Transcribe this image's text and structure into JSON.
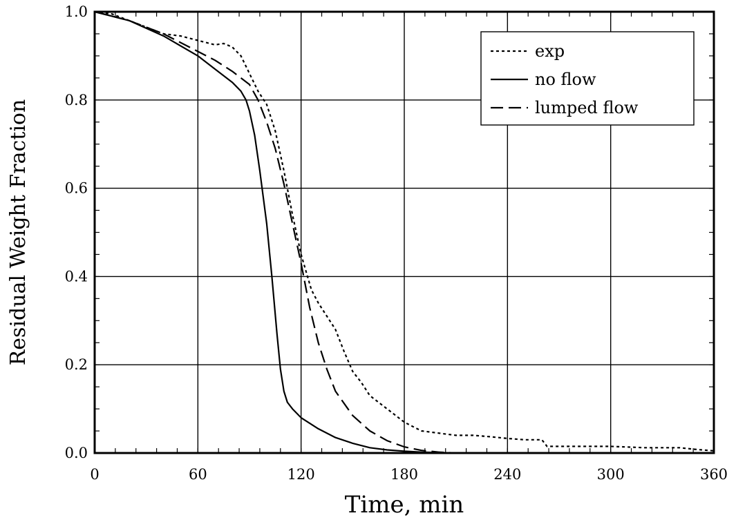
{
  "chart_data": {
    "type": "line",
    "title": "",
    "xlabel": "Time, min",
    "ylabel": "Residual Weight Fraction",
    "xlim": [
      0,
      360
    ],
    "ylim": [
      0,
      1.0
    ],
    "xticks": [
      0,
      60,
      120,
      180,
      240,
      300,
      360
    ],
    "yticks": [
      0.0,
      0.2,
      0.4,
      0.6,
      0.8,
      1.0
    ],
    "xtick_labels": [
      "0",
      "60",
      "120",
      "180",
      "240",
      "300",
      "360"
    ],
    "ytick_labels": [
      "0.0",
      "0.2",
      "0.4",
      "0.6",
      "0.8",
      "1.0"
    ],
    "grid": true,
    "legend_position": "top-right",
    "series": [
      {
        "name": "exp",
        "style": "dotted",
        "x": [
          0,
          10,
          20,
          30,
          40,
          50,
          60,
          65,
          70,
          75,
          80,
          85,
          90,
          95,
          100,
          105,
          110,
          115,
          120,
          123,
          126,
          130,
          135,
          140,
          145,
          150,
          155,
          160,
          165,
          170,
          175,
          180,
          185,
          190,
          200,
          210,
          220,
          230,
          240,
          250,
          260,
          263,
          270,
          280,
          300,
          320,
          340,
          350,
          360
        ],
        "y": [
          1.0,
          0.995,
          0.98,
          0.965,
          0.95,
          0.945,
          0.935,
          0.93,
          0.925,
          0.928,
          0.92,
          0.9,
          0.86,
          0.82,
          0.79,
          0.73,
          0.64,
          0.54,
          0.45,
          0.41,
          0.37,
          0.34,
          0.31,
          0.28,
          0.23,
          0.185,
          0.16,
          0.13,
          0.115,
          0.1,
          0.085,
          0.07,
          0.06,
          0.05,
          0.045,
          0.04,
          0.04,
          0.037,
          0.033,
          0.03,
          0.03,
          0.015,
          0.015,
          0.015,
          0.015,
          0.012,
          0.012,
          0.008,
          0.005
        ]
      },
      {
        "name": "no flow",
        "style": "solid",
        "x": [
          0,
          20,
          40,
          60,
          70,
          80,
          85,
          88,
          90,
          93,
          96,
          100,
          103,
          106,
          108,
          110,
          112,
          115,
          120,
          130,
          140,
          150,
          160,
          170,
          180,
          190,
          200,
          210
        ],
        "y": [
          1.0,
          0.98,
          0.945,
          0.9,
          0.87,
          0.84,
          0.82,
          0.8,
          0.775,
          0.72,
          0.64,
          0.52,
          0.4,
          0.27,
          0.19,
          0.14,
          0.115,
          0.1,
          0.08,
          0.055,
          0.035,
          0.022,
          0.012,
          0.007,
          0.004,
          0.002,
          0.001,
          0.0
        ]
      },
      {
        "name": "lumped flow",
        "style": "dashed",
        "x": [
          0,
          20,
          40,
          60,
          70,
          80,
          90,
          95,
          100,
          105,
          110,
          115,
          120,
          125,
          130,
          135,
          140,
          150,
          160,
          170,
          180,
          190,
          200,
          210
        ],
        "y": [
          1.0,
          0.98,
          0.95,
          0.91,
          0.89,
          0.865,
          0.835,
          0.8,
          0.75,
          0.69,
          0.61,
          0.52,
          0.43,
          0.33,
          0.25,
          0.19,
          0.14,
          0.085,
          0.05,
          0.028,
          0.014,
          0.006,
          0.002,
          0.0
        ]
      }
    ]
  }
}
